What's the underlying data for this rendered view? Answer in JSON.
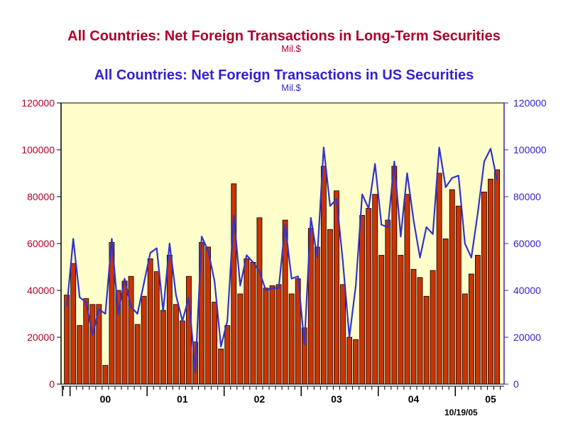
{
  "chart_data": {
    "type": "bar",
    "title": "All Countries: Net Foreign Transactions in Long-Term Securities",
    "title_unit": "Mil.$",
    "title2": "All Countries: Net Foreign Transactions in US Securities",
    "title2_unit": "Mil.$",
    "date_stamp": "10/19/05",
    "colors": {
      "bars": "#cc3300",
      "bar_outline": "#000000",
      "line": "#3333cc",
      "background": "#ffffcc",
      "title1": "#b0002a",
      "title2": "#3322cc",
      "left_axis": "#b0002a",
      "right_axis": "#3322cc"
    },
    "ylim": [
      0,
      120000
    ],
    "yticks": [
      0,
      20000,
      40000,
      60000,
      80000,
      100000,
      120000
    ],
    "x_labels": [
      "00",
      "01",
      "02",
      "03",
      "04",
      "05"
    ],
    "x_start": "1999-12",
    "grid": false,
    "series": [
      {
        "name": "Net Foreign Transactions in Long-Term Securities",
        "type": "bar",
        "values": [
          38000,
          51500,
          25000,
          36500,
          34000,
          34000,
          8000,
          60500,
          40000,
          44000,
          46000,
          25500,
          37500,
          53500,
          48000,
          31500,
          55000,
          34000,
          27000,
          46000,
          18000,
          60500,
          58500,
          35000,
          15000,
          25000,
          85500,
          38500,
          53500,
          52000,
          71000,
          41000,
          42000,
          42500,
          70000,
          38500,
          45000,
          24000,
          66500,
          58500,
          93000,
          66000,
          82500,
          42500,
          20000,
          19000,
          72000,
          75000,
          81000,
          55000,
          70000,
          93000,
          55000,
          81000,
          49000,
          45500,
          37500,
          48500,
          90000,
          62000,
          83000,
          76000,
          38500,
          47000,
          55000,
          82000,
          87500,
          91500
        ]
      },
      {
        "name": "Net Foreign Transactions in US Securities",
        "type": "line",
        "values": [
          33000,
          62000,
          37000,
          35000,
          21000,
          32000,
          30000,
          62000,
          30000,
          45000,
          33000,
          30000,
          43000,
          56000,
          58000,
          31000,
          60000,
          38000,
          27000,
          37000,
          5000,
          63000,
          57000,
          44000,
          16000,
          27000,
          72000,
          42000,
          55000,
          52000,
          48000,
          40000,
          41000,
          41000,
          68000,
          45000,
          46000,
          17000,
          71000,
          54000,
          101000,
          76000,
          79000,
          52000,
          20000,
          42000,
          81000,
          75000,
          94000,
          68000,
          67000,
          95000,
          63000,
          90000,
          70000,
          54000,
          67000,
          64000,
          101000,
          84000,
          88000,
          89000,
          60000,
          54000,
          73000,
          95000,
          100500,
          87000
        ]
      }
    ]
  }
}
